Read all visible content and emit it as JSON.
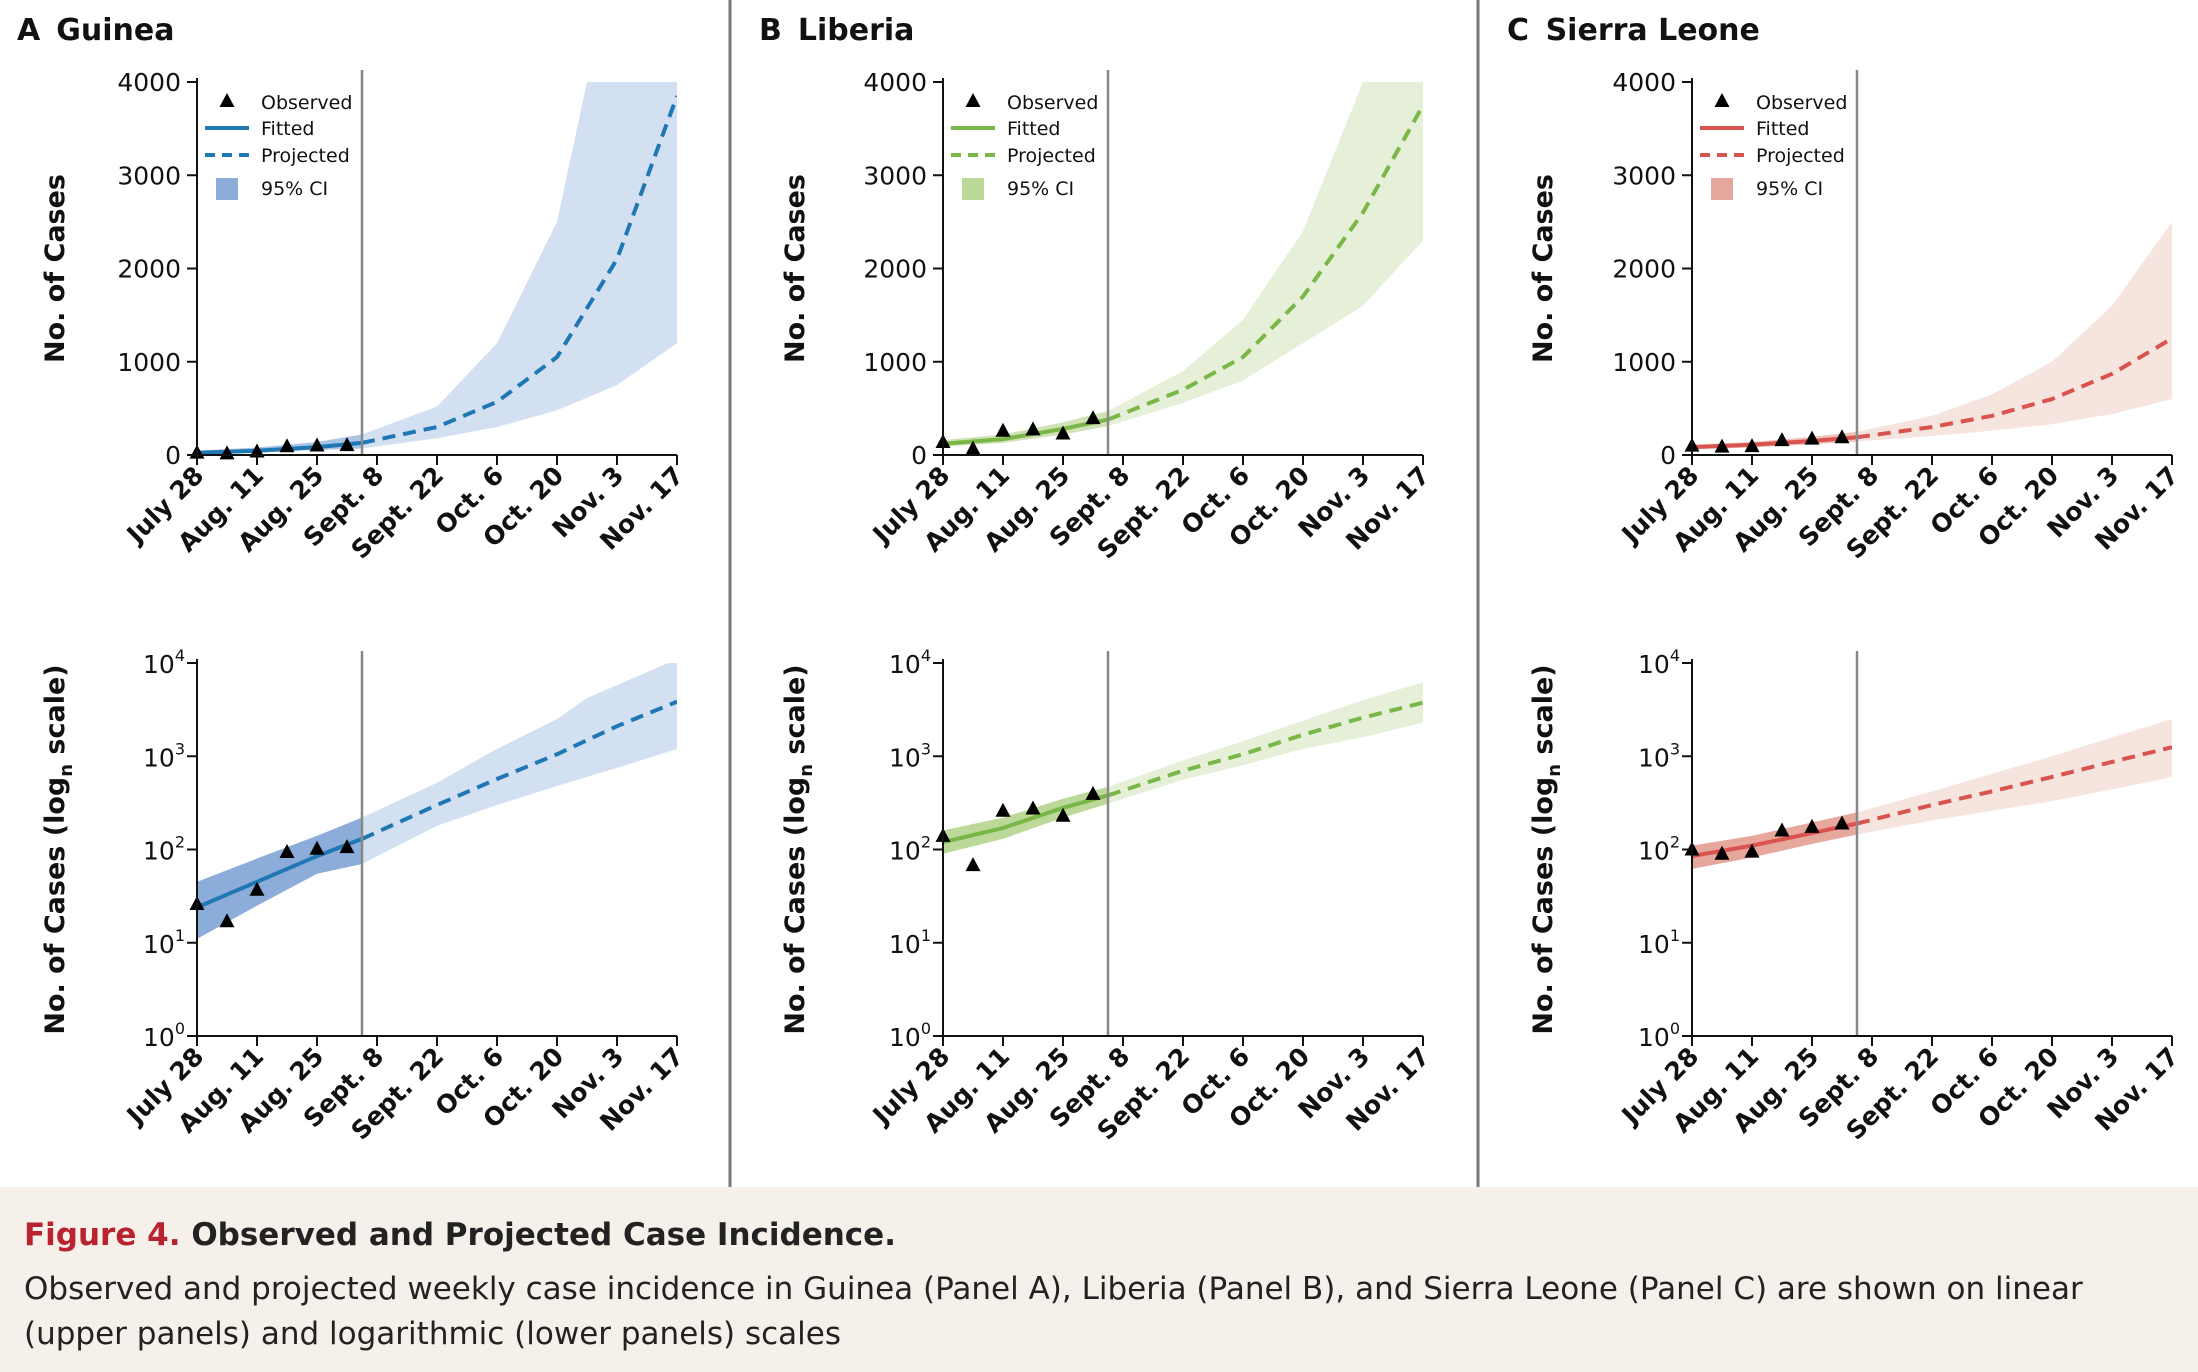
{
  "figure": {
    "label": "Figure 4.",
    "title": "Observed and Projected Case Incidence.",
    "caption": "Observed and projected weekly case incidence in Guinea (Panel A), Liberia (Panel B), and Sierra Leone (Panel C) are shown on linear (upper panels) and logarithmic (lower panels) scales"
  },
  "legend": {
    "observed": "Observed",
    "fitted": "Fitted",
    "projected": "Projected",
    "ci": "95% CI"
  },
  "axes": {
    "ylabel_linear": "No. of Cases",
    "ylabel_log_prefix": "No. of Cases (log",
    "ylabel_log_sub": "n",
    "ylabel_log_suffix": " scale)",
    "linear_ticks": [
      0,
      1000,
      2000,
      3000,
      4000
    ],
    "log_ticks": [
      {
        "base": "10",
        "exp": "0"
      },
      {
        "base": "10",
        "exp": "1"
      },
      {
        "base": "10",
        "exp": "2"
      },
      {
        "base": "10",
        "exp": "3"
      },
      {
        "base": "10",
        "exp": "4"
      }
    ],
    "xticks": [
      "July 28",
      "Aug. 11",
      "Aug. 25",
      "Sept. 8",
      "Sept. 22",
      "Oct. 6",
      "Oct. 20",
      "Nov. 3",
      "Nov. 17"
    ]
  },
  "chart_data": [
    {
      "panel": "A",
      "country": "Guinea",
      "type": "line",
      "scales": [
        "linear",
        "log"
      ],
      "ylim_linear": [
        0,
        4000
      ],
      "ylim_log": [
        1,
        10000
      ],
      "xlim_weeks": [
        0,
        16
      ],
      "fit_end_week": 5.5,
      "color": "#1f78b4",
      "ci_fill_projected": "#d3e0f2",
      "ci_fill_fitted": "#8cadd9",
      "observed": [
        [
          0,
          26
        ],
        [
          1,
          17
        ],
        [
          2,
          37
        ],
        [
          3,
          94
        ],
        [
          4,
          102
        ],
        [
          5,
          106
        ]
      ],
      "central": [
        [
          0,
          24
        ],
        [
          2,
          45
        ],
        [
          4,
          85
        ],
        [
          5.5,
          130
        ],
        [
          8,
          300
        ],
        [
          10,
          570
        ],
        [
          12,
          1050
        ],
        [
          14,
          2100
        ],
        [
          16,
          3850
        ]
      ],
      "ci_lower": [
        [
          0,
          11
        ],
        [
          2,
          25
        ],
        [
          4,
          55
        ],
        [
          5.5,
          70
        ],
        [
          8,
          180
        ],
        [
          10,
          300
        ],
        [
          12,
          480
        ],
        [
          14,
          750
        ],
        [
          16,
          1200
        ]
      ],
      "ci_upper": [
        [
          0,
          45
        ],
        [
          2,
          80
        ],
        [
          4,
          140
        ],
        [
          5.5,
          220
        ],
        [
          8,
          520
        ],
        [
          10,
          1200
        ],
        [
          12,
          2500
        ],
        [
          13,
          4200
        ],
        [
          16,
          11000
        ]
      ]
    },
    {
      "panel": "B",
      "country": "Liberia",
      "type": "line",
      "scales": [
        "linear",
        "log"
      ],
      "ylim_linear": [
        0,
        4000
      ],
      "ylim_log": [
        1,
        10000
      ],
      "xlim_weeks": [
        0,
        16
      ],
      "fit_end_week": 5.5,
      "color": "#7ab648",
      "ci_fill_projected": "#e6efd8",
      "ci_fill_fitted": "#bcd99a",
      "observed": [
        [
          0,
          140
        ],
        [
          1,
          68
        ],
        [
          2,
          260
        ],
        [
          3,
          275
        ],
        [
          4,
          230
        ],
        [
          5,
          395
        ]
      ],
      "central": [
        [
          0,
          120
        ],
        [
          2,
          170
        ],
        [
          4,
          280
        ],
        [
          5.5,
          380
        ],
        [
          8,
          700
        ],
        [
          10,
          1050
        ],
        [
          12,
          1700
        ],
        [
          14,
          2600
        ],
        [
          16,
          3750
        ]
      ],
      "ci_lower": [
        [
          0,
          90
        ],
        [
          2,
          130
        ],
        [
          4,
          220
        ],
        [
          5.5,
          310
        ],
        [
          8,
          560
        ],
        [
          10,
          800
        ],
        [
          12,
          1200
        ],
        [
          14,
          1600
        ],
        [
          16,
          2300
        ]
      ],
      "ci_upper": [
        [
          0,
          160
        ],
        [
          2,
          220
        ],
        [
          4,
          350
        ],
        [
          5.5,
          470
        ],
        [
          8,
          900
        ],
        [
          10,
          1450
        ],
        [
          12,
          2400
        ],
        [
          14,
          4000
        ],
        [
          16,
          6200
        ]
      ]
    },
    {
      "panel": "C",
      "country": "Sierra Leone",
      "type": "line",
      "scales": [
        "linear",
        "log"
      ],
      "ylim_linear": [
        0,
        4000
      ],
      "ylim_log": [
        1,
        10000
      ],
      "xlim_weeks": [
        0,
        16
      ],
      "fit_end_week": 5.5,
      "color": "#d9534f",
      "ci_fill_projected": "#f6e4df",
      "ci_fill_fitted": "#e6a79d",
      "observed": [
        [
          0,
          100
        ],
        [
          1,
          90
        ],
        [
          2,
          95
        ],
        [
          3,
          160
        ],
        [
          4,
          175
        ],
        [
          5,
          190
        ]
      ],
      "central": [
        [
          0,
          85
        ],
        [
          2,
          110
        ],
        [
          4,
          150
        ],
        [
          5.5,
          190
        ],
        [
          8,
          300
        ],
        [
          10,
          420
        ],
        [
          12,
          600
        ],
        [
          14,
          870
        ],
        [
          16,
          1250
        ]
      ],
      "ci_lower": [
        [
          0,
          62
        ],
        [
          2,
          82
        ],
        [
          4,
          115
        ],
        [
          5.5,
          145
        ],
        [
          8,
          205
        ],
        [
          10,
          260
        ],
        [
          12,
          330
        ],
        [
          14,
          440
        ],
        [
          16,
          600
        ]
      ],
      "ci_upper": [
        [
          0,
          110
        ],
        [
          2,
          140
        ],
        [
          4,
          195
        ],
        [
          5.5,
          250
        ],
        [
          8,
          420
        ],
        [
          10,
          650
        ],
        [
          12,
          1000
        ],
        [
          14,
          1600
        ],
        [
          16,
          2500
        ]
      ]
    }
  ]
}
